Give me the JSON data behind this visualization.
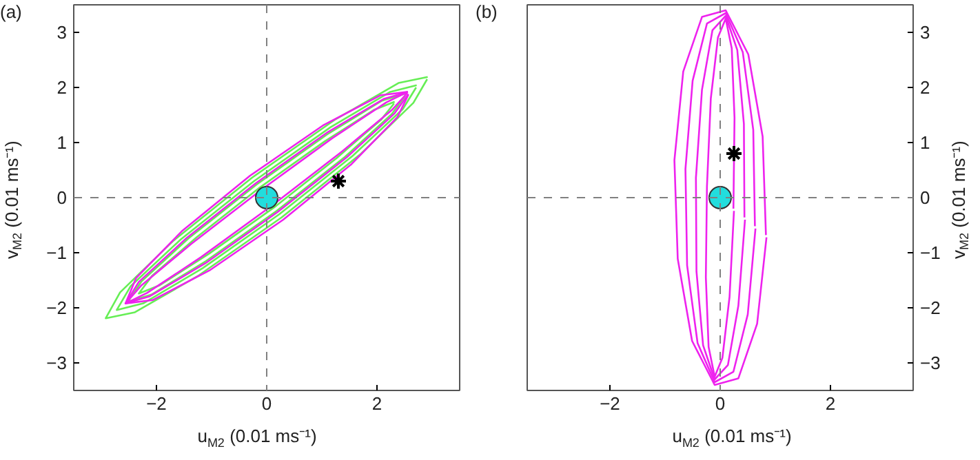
{
  "chart_data": [
    {
      "type": "line",
      "title": "(a)",
      "xlabel": "u$_{M2}$ (0.01 ms⁻¹)",
      "ylabel": "v$_{M2}$ (0.01 ms⁻¹)",
      "xlim": [
        -3.5,
        3.5
      ],
      "ylim": [
        -3.5,
        3.5
      ],
      "xticks": [
        -2,
        0,
        2
      ],
      "yticks": [
        -3,
        -2,
        -1,
        0,
        1,
        2,
        3
      ],
      "grid": false,
      "line_style": "solid",
      "ref_lines": [
        {
          "axis": "x",
          "value": 0,
          "color": "#808080",
          "line_style": "dashed"
        },
        {
          "axis": "y",
          "value": 0,
          "color": "#808080",
          "line_style": "dashed"
        }
      ],
      "series": [
        {
          "color": "#66ee55",
          "x": [
            2.92,
            2.39,
            1.23,
            -0.27,
            -1.69,
            -2.66,
            -2.92,
            -2.39,
            -1.23,
            0.27,
            1.69,
            2.66,
            2.91
          ],
          "values": [
            2.19,
            2.08,
            1.41,
            0.36,
            -0.78,
            -1.72,
            -2.19,
            -2.08,
            -1.41,
            -0.36,
            0.78,
            1.72,
            2.15
          ]
        },
        {
          "color": "#66ee55",
          "x": [
            2.72,
            2.24,
            1.16,
            -0.23,
            -1.56,
            -2.47,
            -2.72,
            -2.24,
            -1.16,
            0.23,
            1.56,
            2.47,
            2.71
          ],
          "values": [
            2.04,
            1.92,
            1.28,
            0.3,
            -0.76,
            -1.61,
            -2.04,
            -1.92,
            -1.28,
            -0.3,
            0.76,
            1.61,
            2.0
          ]
        },
        {
          "color": "#66ee55",
          "x": [
            2.52,
            2.09,
            1.1,
            -0.18,
            -1.42,
            -2.27,
            -2.52,
            -2.09,
            -1.1,
            0.18,
            1.42,
            2.27,
            2.51
          ],
          "values": [
            1.89,
            1.76,
            1.15,
            0.24,
            -0.74,
            -1.52,
            -1.89,
            -1.76,
            -1.15,
            -0.24,
            0.74,
            1.52,
            1.85
          ]
        },
        {
          "color": "#66ee55",
          "x": [
            2.32,
            1.94,
            1.05,
            -0.13,
            -1.27,
            -2.08,
            -2.32,
            -1.94,
            -1.05,
            0.13,
            1.27,
            2.08,
            2.31
          ],
          "values": [
            1.74,
            1.59,
            1.02,
            0.18,
            -0.72,
            -1.42,
            -1.74,
            -1.59,
            -1.02,
            -0.18,
            0.72,
            1.42,
            1.71
          ]
        },
        {
          "color": "#ee22ee",
          "x": [
            2.56,
            2.07,
            1.02,
            -0.3,
            -1.54,
            -2.37,
            -2.56,
            -2.07,
            -1.02,
            0.3,
            1.54,
            2.37,
            2.57
          ],
          "values": [
            1.92,
            1.86,
            1.31,
            0.4,
            -0.61,
            -1.46,
            -1.92,
            -1.86,
            -1.31,
            -0.4,
            0.61,
            1.46,
            1.87
          ]
        },
        {
          "color": "#ee22ee",
          "x": [
            2.56,
            2.12,
            1.11,
            -0.2,
            -1.45,
            -2.32,
            -2.56,
            -2.12,
            -1.11,
            0.2,
            1.45,
            2.32,
            2.57
          ],
          "values": [
            1.92,
            1.79,
            1.19,
            0.26,
            -0.73,
            -1.53,
            -1.92,
            -1.79,
            -1.19,
            -0.26,
            0.73,
            1.53,
            1.88
          ]
        },
        {
          "color": "#ee22ee",
          "x": [
            2.56,
            2.17,
            1.19,
            -0.1,
            -1.37,
            -2.27,
            -2.56,
            -2.17,
            -1.19,
            0.1,
            1.37,
            2.27,
            2.55
          ],
          "values": [
            1.92,
            1.73,
            1.08,
            0.14,
            -0.84,
            -1.59,
            -1.92,
            -1.73,
            -1.08,
            -0.14,
            0.84,
            1.59,
            1.9
          ]
        },
        {
          "type": "scatter",
          "marker": "circle",
          "color": "#22dddd",
          "x": [
            0
          ],
          "values": [
            0
          ]
        },
        {
          "type": "scatter",
          "marker": "cross",
          "color": "#000000",
          "x": [
            1.3
          ],
          "values": [
            0.3
          ]
        }
      ]
    },
    {
      "type": "line",
      "title": "(b)",
      "xlabel": "u$_{M2}$ (0.01 ms⁻¹)",
      "y2label": "v$_{M2}$ (0.01 ms⁻¹)",
      "xlim": [
        -3.5,
        3.5
      ],
      "y2lim": [
        -3.5,
        3.5
      ],
      "xticks": [
        -2,
        0,
        2
      ],
      "y2ticks": [
        -3,
        -2,
        -1,
        0,
        1,
        2,
        3
      ],
      "grid": false,
      "line_style": "solid",
      "ref_lines": [
        {
          "axis": "x",
          "value": 0,
          "color": "#808080",
          "line_style": "dashed"
        },
        {
          "axis": "y2",
          "value": 0,
          "color": "#808080",
          "line_style": "dashed"
        }
      ],
      "series": [
        {
          "axis": "y2",
          "color": "#ee22ee",
          "x": [
            0.83,
            0.77,
            0.51,
            0.1,
            -0.33,
            -0.67,
            -0.83,
            -0.77,
            -0.51,
            -0.1,
            0.33,
            0.67,
            0.84
          ],
          "values": [
            -0.68,
            1.11,
            2.6,
            3.4,
            3.28,
            2.29,
            0.68,
            -1.11,
            -2.6,
            -3.4,
            -3.28,
            -2.29,
            -0.72
          ]
        },
        {
          "axis": "y2",
          "color": "#ee22ee",
          "x": [
            0.63,
            0.6,
            0.41,
            0.1,
            -0.24,
            -0.5,
            -0.63,
            -0.6,
            -0.41,
            -0.1,
            0.24,
            0.5,
            0.64
          ],
          "values": [
            -0.52,
            1.23,
            2.64,
            3.35,
            3.16,
            2.12,
            0.52,
            -1.23,
            -2.64,
            -3.35,
            -3.16,
            -2.12,
            -0.56
          ]
        },
        {
          "axis": "y2",
          "color": "#ee22ee",
          "x": [
            0.44,
            0.43,
            0.31,
            0.1,
            -0.14,
            -0.33,
            -0.44,
            -0.43,
            -0.31,
            -0.1,
            0.14,
            0.33,
            0.45
          ],
          "values": [
            -0.36,
            1.34,
            2.68,
            3.3,
            3.04,
            1.96,
            0.36,
            -1.34,
            -2.68,
            -3.3,
            -3.04,
            -1.96,
            -0.4
          ]
        },
        {
          "axis": "y2",
          "color": "#ee22ee",
          "x": [
            0.24,
            0.26,
            0.21,
            0.1,
            -0.04,
            -0.17,
            -0.24,
            -0.26,
            -0.21,
            -0.1,
            0.04,
            0.17,
            0.25
          ],
          "values": [
            -0.2,
            1.45,
            2.71,
            3.25,
            2.91,
            1.8,
            0.2,
            -1.45,
            -2.71,
            -3.25,
            -2.91,
            -1.8,
            -0.24
          ]
        },
        {
          "axis": "y2",
          "type": "scatter",
          "marker": "circle",
          "color": "#22dddd",
          "x": [
            0
          ],
          "values": [
            0
          ]
        },
        {
          "axis": "y2",
          "type": "scatter",
          "marker": "cross",
          "color": "#000000",
          "x": [
            0.25
          ],
          "values": [
            0.8
          ]
        }
      ]
    }
  ]
}
